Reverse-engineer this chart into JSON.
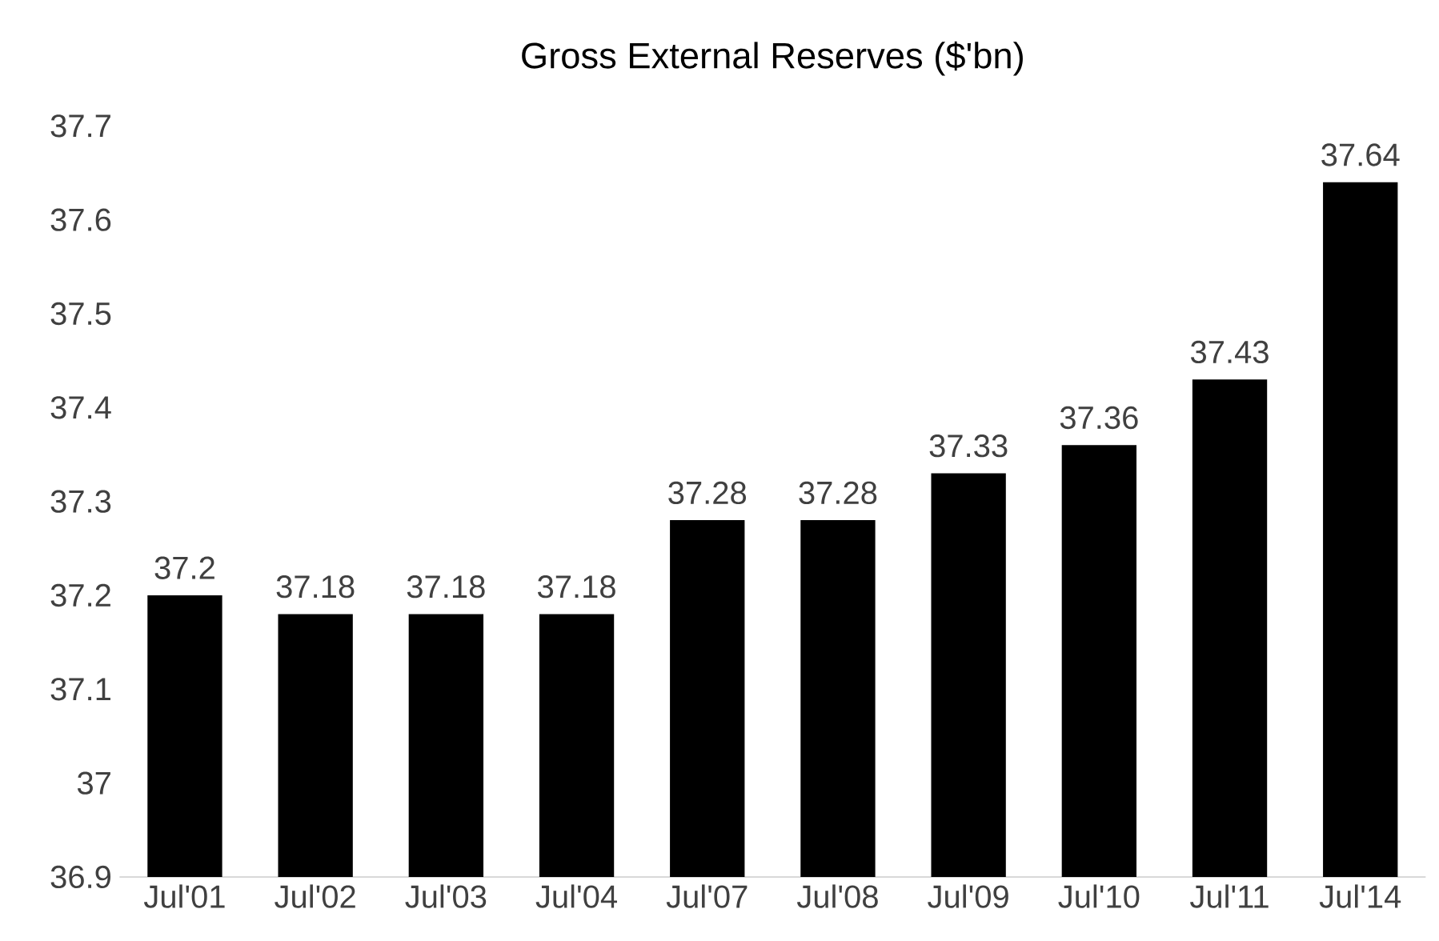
{
  "chart_data": {
    "type": "bar",
    "title": "Gross External Reserves ($'bn)",
    "categories": [
      "Jul'01",
      "Jul'02",
      "Jul'03",
      "Jul'04",
      "Jul'07",
      "Jul'08",
      "Jul'09",
      "Jul'10",
      "Jul'11",
      "Jul'14"
    ],
    "values": [
      37.2,
      37.18,
      37.18,
      37.18,
      37.28,
      37.28,
      37.33,
      37.36,
      37.43,
      37.64
    ],
    "color": "#000000",
    "ylim": [
      36.9,
      37.7
    ],
    "yticks": [
      36.9,
      37,
      37.1,
      37.2,
      37.3,
      37.4,
      37.5,
      37.6,
      37.7
    ],
    "data_labels": true,
    "grid": false
  }
}
